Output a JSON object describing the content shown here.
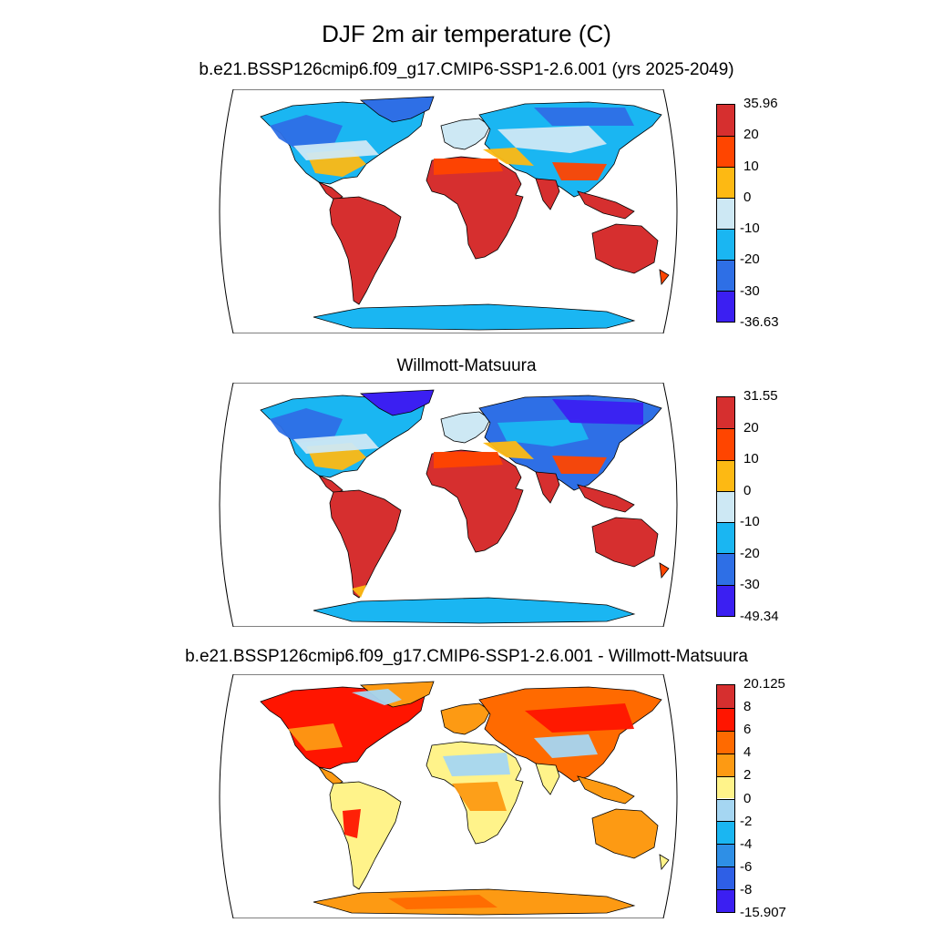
{
  "figure": {
    "title": "DJF 2m air temperature (C)"
  },
  "panels": [
    {
      "id": "model",
      "title": "b.e21.BSSP126cmip6.f09_g17.CMIP6-SSP1-2.6.001 (yrs 2025-2049)",
      "colorbar": {
        "labels": [
          "35.96",
          "20",
          "10",
          "0",
          "-10",
          "-20",
          "-30",
          "-36.63"
        ],
        "colors": [
          "#d62f2f",
          "#ff4500",
          "#fdb913",
          "#cde8f4",
          "#1ab6f2",
          "#2e6fe6",
          "#3b1ff2"
        ]
      }
    },
    {
      "id": "obs",
      "title": "Willmott-Matsuura",
      "colorbar": {
        "labels": [
          "31.55",
          "20",
          "10",
          "0",
          "-10",
          "-20",
          "-30",
          "-49.34"
        ],
        "colors": [
          "#d62f2f",
          "#ff4500",
          "#fdb913",
          "#cde8f4",
          "#1ab6f2",
          "#2e6fe6",
          "#3b1ff2"
        ]
      }
    },
    {
      "id": "diff",
      "title": "b.e21.BSSP126cmip6.f09_g17.CMIP6-SSP1-2.6.001 - Willmott-Matsuura",
      "colorbar": {
        "labels": [
          "20.125",
          "8",
          "6",
          "4",
          "2",
          "0",
          "-2",
          "-4",
          "-6",
          "-8",
          "-15.907"
        ],
        "colors": [
          "#d62f2f",
          "#ff1500",
          "#ff6a00",
          "#fd9a13",
          "#fff38a",
          "#a5d6f2",
          "#1ab6f2",
          "#2e8fe6",
          "#2e5fe6",
          "#3b1ff2"
        ]
      }
    }
  ]
}
